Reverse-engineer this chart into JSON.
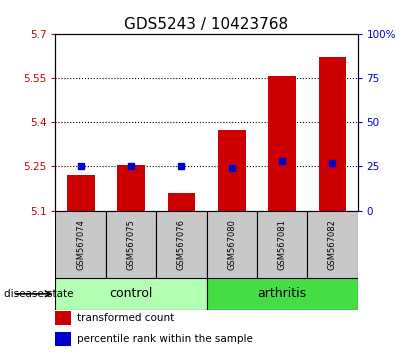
{
  "title": "GDS5243 / 10423768",
  "samples": [
    "GSM567074",
    "GSM567075",
    "GSM567076",
    "GSM567080",
    "GSM567081",
    "GSM567082"
  ],
  "groups": [
    "control",
    "control",
    "control",
    "arthritis",
    "arthritis",
    "arthritis"
  ],
  "transformed_count": [
    5.22,
    5.255,
    5.16,
    5.375,
    5.555,
    5.62
  ],
  "percentile_rank": [
    25,
    25,
    25,
    24,
    28,
    27
  ],
  "ymin": 5.1,
  "ymax": 5.7,
  "y2min": 0,
  "y2max": 100,
  "yticks": [
    5.1,
    5.25,
    5.4,
    5.55,
    5.7
  ],
  "y2ticks": [
    0,
    25,
    50,
    75,
    100
  ],
  "dotted_lines": [
    5.25,
    5.4,
    5.55
  ],
  "bar_color": "#cc0000",
  "square_color": "#0000cc",
  "bar_bottom": 5.1,
  "control_color": "#b3ffb3",
  "arthritis_color": "#44dd44",
  "label_color_left": "#cc0000",
  "label_color_right": "#0000cc",
  "group_label_fontsize": 9,
  "title_fontsize": 11,
  "tick_label_fontsize": 7.5,
  "sample_label_fontsize": 6,
  "legend_red_label": "transformed count",
  "legend_blue_label": "percentile rank within the sample",
  "sample_box_color": "#c8c8c8",
  "fig_width": 4.11,
  "fig_height": 3.54,
  "dpi": 100
}
